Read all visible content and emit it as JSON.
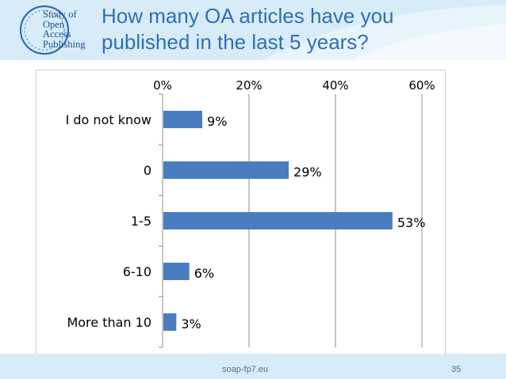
{
  "slide": {
    "title_line1": "How many OA articles have you",
    "title_line2": "published in the last 5 years?",
    "footer_url": "soap-fp7.eu",
    "page_number": "35",
    "accent_color": "#2f6fb5"
  },
  "logo": {
    "line1": "Study of",
    "line2": "Open",
    "line3": "Access",
    "line4": "Publishing"
  },
  "chart_data": {
    "type": "bar",
    "orientation": "horizontal",
    "categories": [
      "I do not know",
      "0",
      "1-5",
      "6-10",
      "More than 10"
    ],
    "values": [
      9,
      29,
      53,
      6,
      3
    ],
    "data_labels": [
      "9%",
      "29%",
      "53%",
      "6%",
      "3%"
    ],
    "x_ticks": [
      "0%",
      "20%",
      "40%",
      "60%"
    ],
    "xlim": [
      0,
      60
    ],
    "x_axis_position": "top",
    "grid": true,
    "legend": "none",
    "bar_color": "#4a7dbf"
  }
}
